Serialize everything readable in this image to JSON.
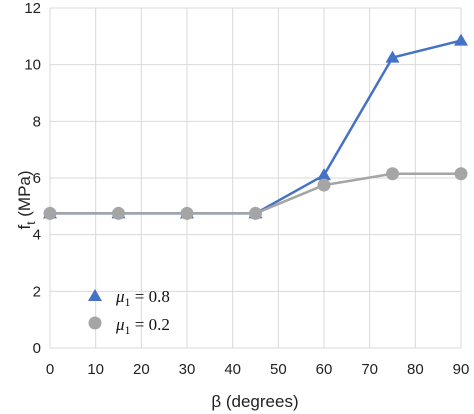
{
  "chart_data": {
    "type": "line",
    "title": "",
    "xlabel": "β (degrees)",
    "ylabel_main": "f",
    "ylabel_sub": "t",
    "ylabel_rest": " (MPa)",
    "xlim": [
      0,
      90
    ],
    "ylim": [
      0,
      12
    ],
    "xticks": [
      0,
      10,
      20,
      30,
      40,
      50,
      60,
      70,
      80,
      90
    ],
    "xtick_labels": [
      "0",
      "10",
      "20",
      "30",
      "40",
      "50",
      "60",
      "70",
      "80",
      "90"
    ],
    "yticks": [
      0,
      2,
      4,
      6,
      8,
      10,
      12
    ],
    "ytick_labels": [
      "0",
      "2",
      "4",
      "6",
      "8",
      "10",
      "12"
    ],
    "grid": true,
    "legend_position": "bottom-left",
    "series": [
      {
        "name_symbol": "μ",
        "name_sub": "1",
        "name_rest": " = 0.8",
        "marker": "triangle",
        "color": "#4472C4",
        "x": [
          0,
          15,
          30,
          45,
          60,
          75,
          90
        ],
        "y": [
          4.75,
          4.75,
          4.75,
          4.75,
          6.1,
          10.25,
          10.85
        ]
      },
      {
        "name_symbol": "μ",
        "name_sub": "1",
        "name_rest": " = 0.2",
        "marker": "circle",
        "color": "#A5A5A5",
        "x": [
          0,
          15,
          30,
          45,
          60,
          75,
          90
        ],
        "y": [
          4.75,
          4.75,
          4.75,
          4.75,
          5.75,
          6.15,
          6.15
        ]
      }
    ]
  }
}
